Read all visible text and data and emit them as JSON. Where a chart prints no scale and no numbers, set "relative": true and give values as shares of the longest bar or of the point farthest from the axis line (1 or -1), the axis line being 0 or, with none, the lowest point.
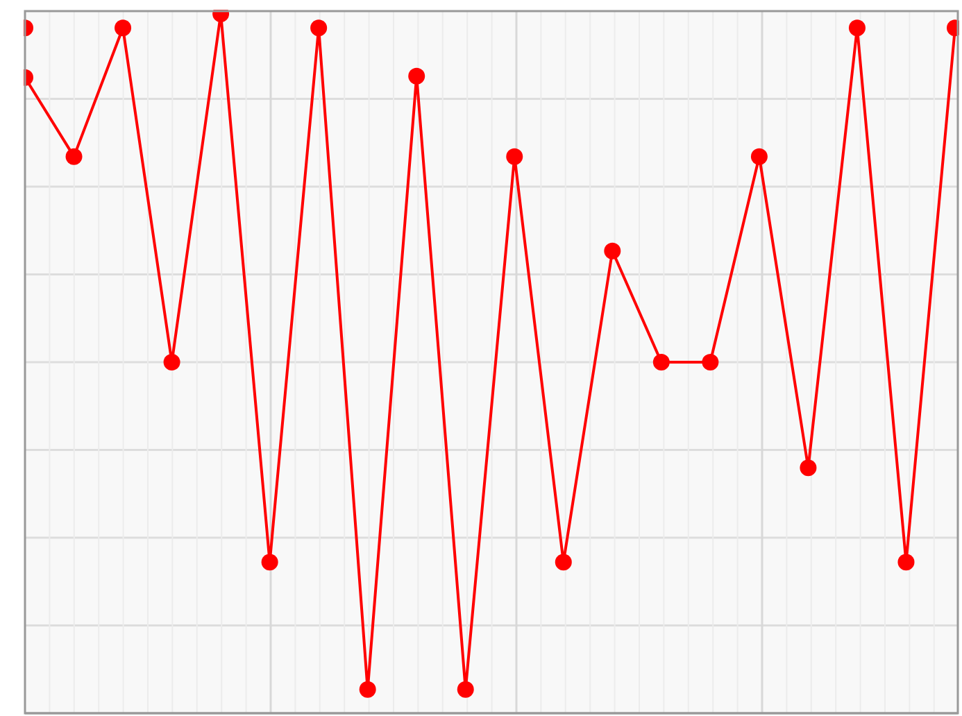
{
  "chart_data": {
    "type": "line",
    "relative": true,
    "categories": [
      null,
      null,
      null,
      null,
      null,
      null,
      null,
      null,
      null,
      null,
      null,
      null,
      null,
      null,
      null,
      null,
      null,
      null,
      null,
      null
    ],
    "grid": true,
    "marker": "circle",
    "line_style": "solid",
    "series": [
      {
        "color": "#ff0000",
        "values": [
          0.909,
          0.796,
          0.98,
          0.502,
          1,
          0.216,
          0.98,
          0.034,
          0.911,
          0.034,
          0.796,
          0.216,
          0.661,
          0.502,
          0.502,
          0.796,
          0.351,
          0.98,
          0.216,
          0.98
        ]
      },
      {
        "color": "#ff0000",
        "values": [
          0.98,
          null,
          null,
          null,
          null,
          null,
          null,
          null,
          null,
          null,
          null,
          null,
          null,
          null,
          null,
          null,
          null,
          null,
          null,
          null
        ]
      }
    ]
  }
}
